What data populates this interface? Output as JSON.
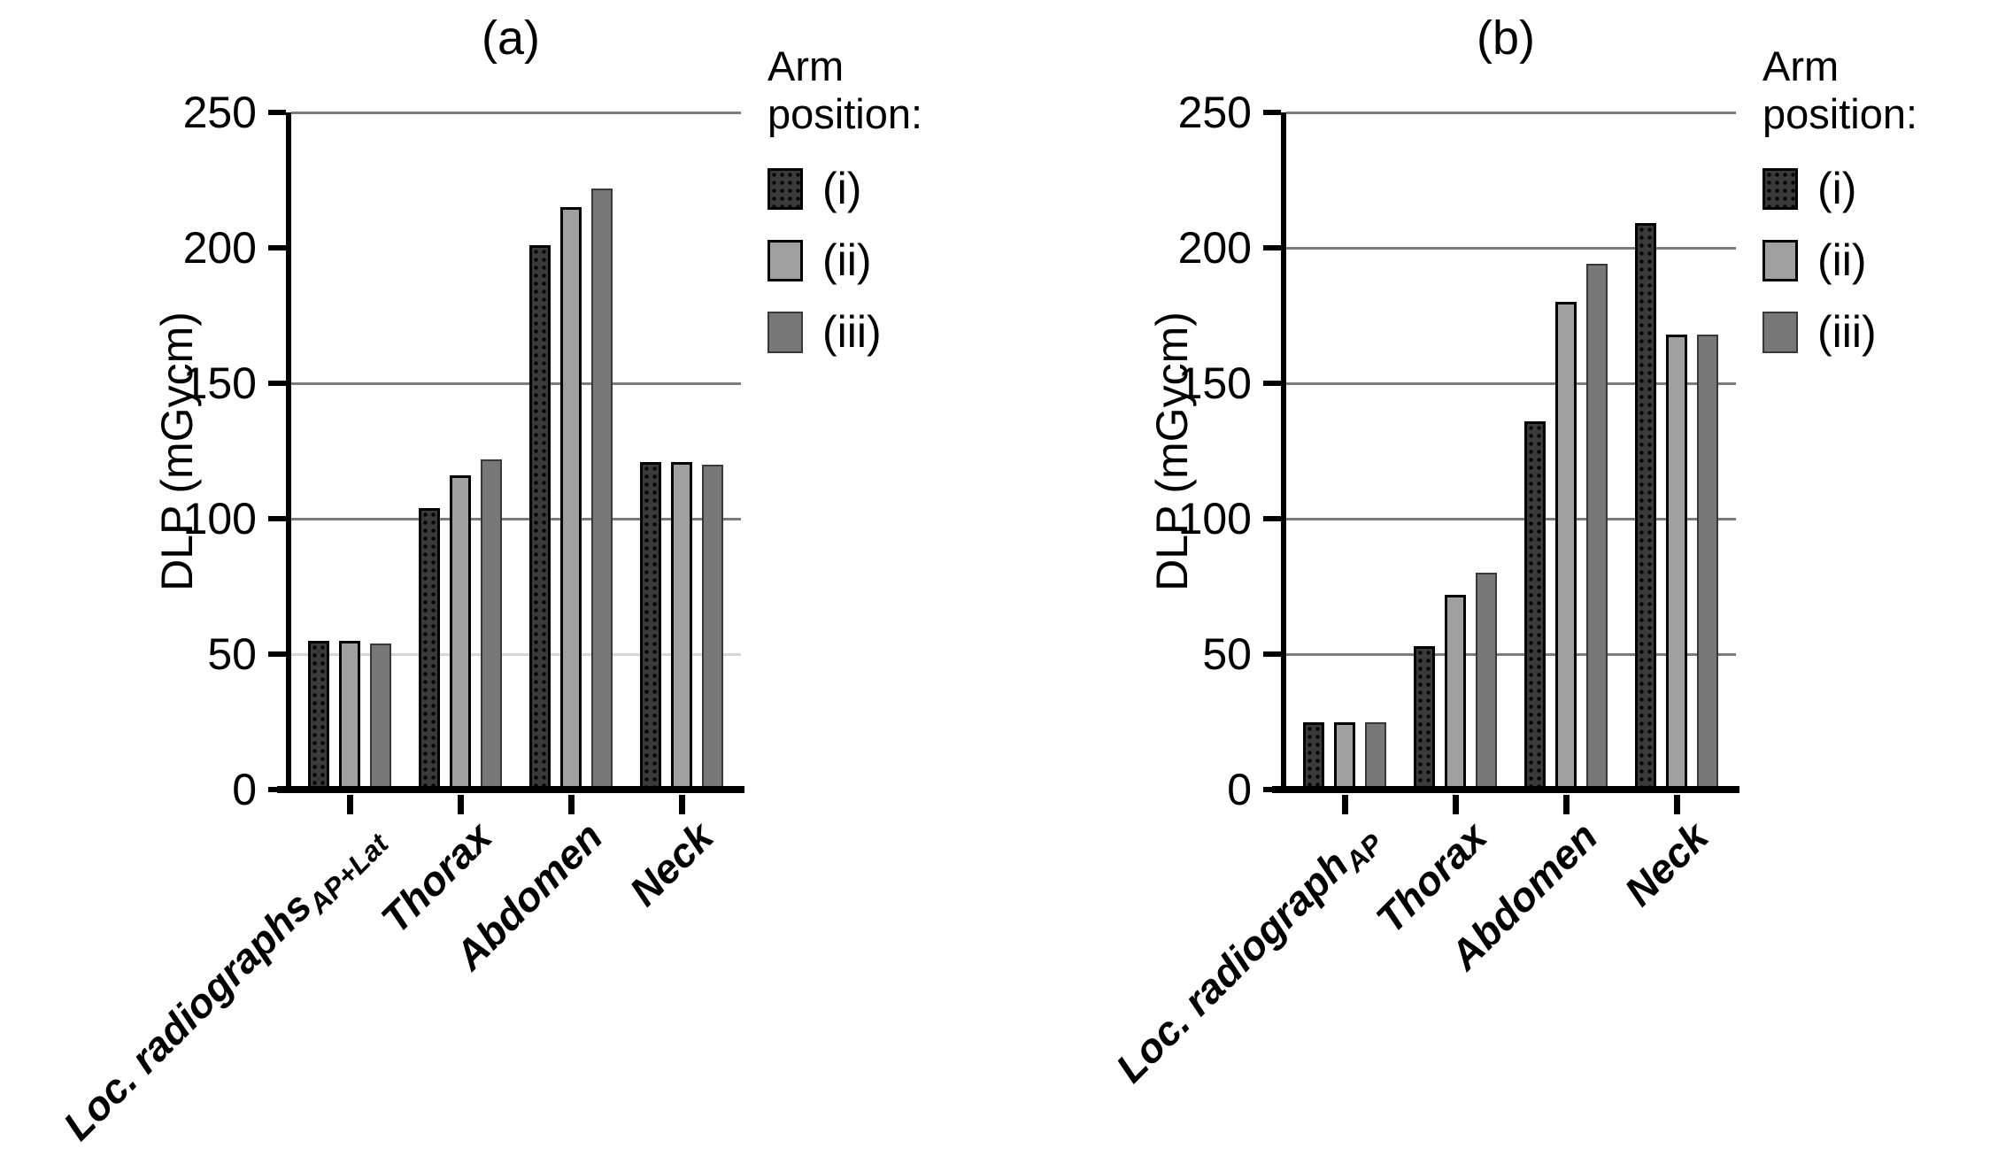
{
  "figure": {
    "background": "#ffffff"
  },
  "chart_data": [
    {
      "type": "bar",
      "title": "(a)",
      "ylabel": "DLP (mGycm)",
      "xlabel": "",
      "ylim": [
        0,
        250
      ],
      "yticks": [
        0,
        50,
        100,
        150,
        200,
        250
      ],
      "gridlines": [
        50,
        100,
        150,
        250
      ],
      "light_gridlines": [
        50
      ],
      "grid": true,
      "legend_position": "right",
      "legend_title": "Arm position:",
      "categories": [
        {
          "text": "Loc. radiographs",
          "sub": "AP+Lat"
        },
        {
          "text": "Thorax",
          "sub": ""
        },
        {
          "text": "Abdomen",
          "sub": ""
        },
        {
          "text": "Neck",
          "sub": ""
        }
      ],
      "series": [
        {
          "name": "(i)",
          "style": "dark-dotted",
          "color": "#3a3a3a",
          "values": [
            55,
            104,
            201,
            121
          ]
        },
        {
          "name": "(ii)",
          "style": "light-gray",
          "color": "#a0a0a0",
          "values": [
            55,
            116,
            215,
            121
          ]
        },
        {
          "name": "(iii)",
          "style": "mid-gray",
          "color": "#787878",
          "values": [
            54,
            122,
            222,
            120
          ]
        }
      ]
    },
    {
      "type": "bar",
      "title": "(b)",
      "ylabel": "DLP (mGycm)",
      "xlabel": "",
      "ylim": [
        0,
        250
      ],
      "yticks": [
        0,
        50,
        100,
        150,
        200,
        250
      ],
      "gridlines": [
        50,
        100,
        150,
        200,
        250
      ],
      "light_gridlines": [],
      "grid": true,
      "legend_position": "right",
      "legend_title": "Arm position:",
      "categories": [
        {
          "text": "Loc. radiograph",
          "sub": "AP"
        },
        {
          "text": "Thorax",
          "sub": ""
        },
        {
          "text": "Abdomen",
          "sub": ""
        },
        {
          "text": "Neck",
          "sub": ""
        }
      ],
      "series": [
        {
          "name": "(i)",
          "style": "dark-dotted",
          "color": "#3a3a3a",
          "values": [
            25,
            53,
            136,
            209
          ]
        },
        {
          "name": "(ii)",
          "style": "light-gray",
          "color": "#a0a0a0",
          "values": [
            25,
            72,
            180,
            168
          ]
        },
        {
          "name": "(iii)",
          "style": "mid-gray",
          "color": "#787878",
          "values": [
            25,
            80,
            194,
            168
          ]
        }
      ]
    }
  ]
}
